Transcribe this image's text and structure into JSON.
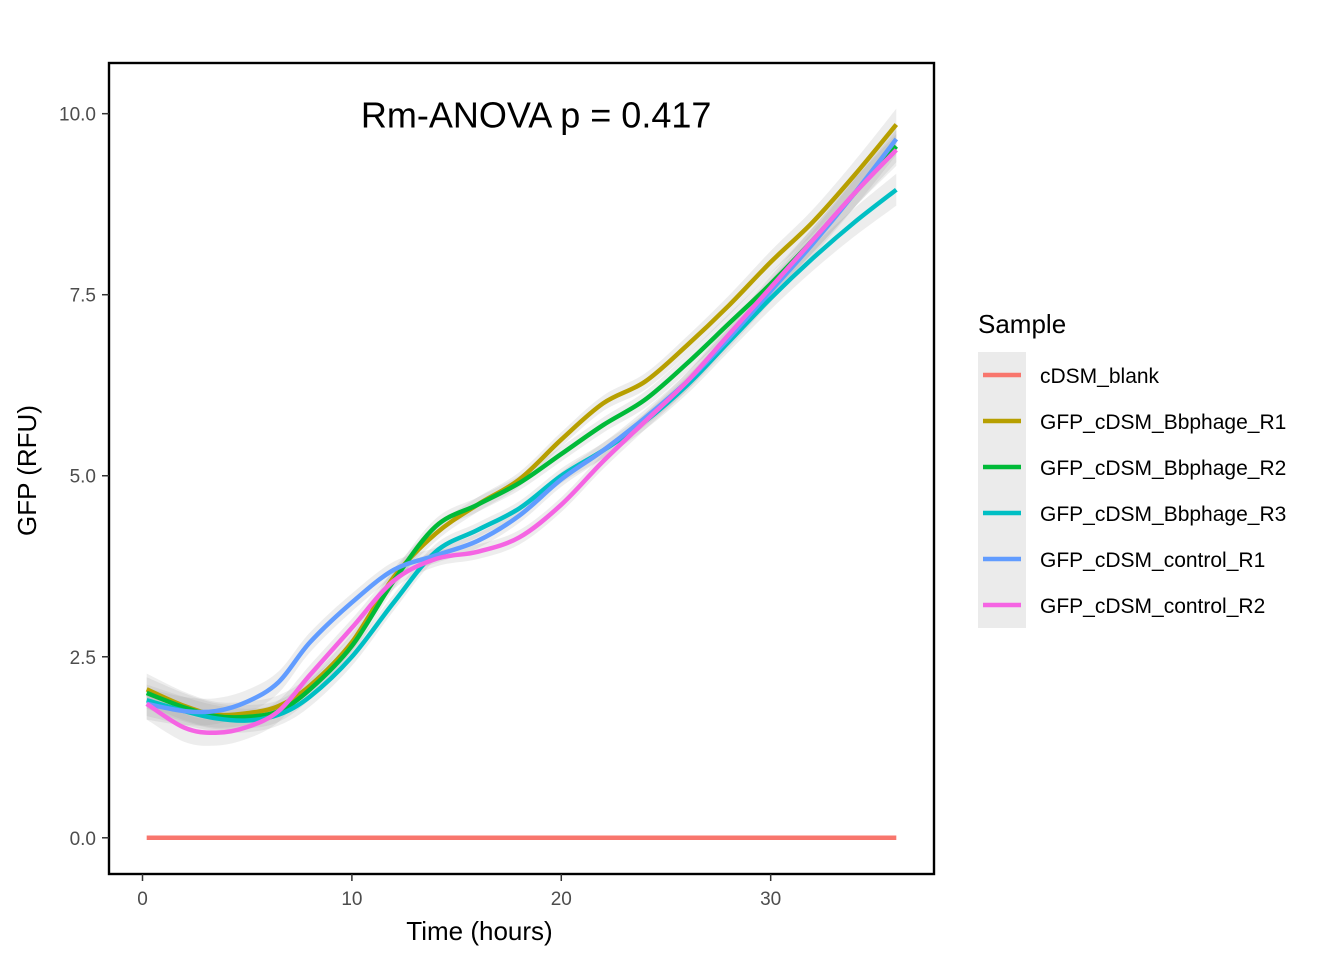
{
  "chart_data": {
    "type": "line",
    "annotation": "Rm-ANOVA p = 0.417",
    "xlabel": "Time (hours)",
    "ylabel": "GFP (RFU)",
    "xlim": [
      -1.6,
      37.8
    ],
    "ylim": [
      -0.5,
      10.7
    ],
    "xticks": [
      0,
      10,
      20,
      30
    ],
    "xtick_labels": [
      "0",
      "10",
      "20",
      "30"
    ],
    "yticks": [
      0,
      2.5,
      5,
      7.5,
      10
    ],
    "ytick_labels": [
      "0.0",
      "2.5",
      "5.0",
      "7.5",
      "10.0"
    ],
    "legend": {
      "title": "Sample",
      "position": "right"
    },
    "confidence_band": true,
    "series": [
      {
        "name": "cDSM_blank",
        "color": "#F8766D",
        "x": [
          0.2,
          36
        ],
        "y": [
          0,
          0
        ]
      },
      {
        "name": "GFP_cDSM_Bbphage_R1",
        "color": "#B79F00",
        "x": [
          0.2,
          2,
          3.5,
          5,
          6.5,
          8,
          10,
          12,
          14,
          16,
          18,
          20,
          22,
          24,
          26,
          28,
          30,
          32,
          34,
          36
        ],
        "y": [
          2.05,
          1.82,
          1.7,
          1.72,
          1.82,
          2.1,
          2.7,
          3.6,
          4.2,
          4.6,
          4.95,
          5.5,
          6.0,
          6.3,
          6.8,
          7.35,
          7.95,
          8.5,
          9.15,
          9.85
        ]
      },
      {
        "name": "GFP_cDSM_Bbphage_R2",
        "color": "#00BA38",
        "x": [
          0.2,
          2,
          3.5,
          5,
          6.5,
          8,
          10,
          12,
          14,
          16,
          18,
          20,
          22,
          24,
          26,
          28,
          30,
          32,
          34,
          36
        ],
        "y": [
          2.0,
          1.8,
          1.68,
          1.67,
          1.75,
          2.05,
          2.65,
          3.55,
          4.3,
          4.6,
          4.9,
          5.3,
          5.7,
          6.05,
          6.55,
          7.1,
          7.65,
          8.25,
          8.9,
          9.55
        ]
      },
      {
        "name": "GFP_cDSM_Bbphage_R3",
        "color": "#00BFC4",
        "x": [
          0.2,
          2,
          3.5,
          5,
          6.5,
          8,
          10,
          12,
          14,
          16,
          18,
          20,
          22,
          24,
          26,
          28,
          30,
          32,
          34,
          36
        ],
        "y": [
          1.9,
          1.75,
          1.65,
          1.62,
          1.7,
          1.95,
          2.5,
          3.25,
          3.95,
          4.25,
          4.55,
          5.0,
          5.35,
          5.75,
          6.25,
          6.85,
          7.45,
          8.0,
          8.5,
          8.95
        ]
      },
      {
        "name": "GFP_cDSM_control_R1",
        "color": "#619CFF",
        "x": [
          0.2,
          2,
          3.5,
          5,
          6.5,
          8,
          10,
          12,
          14,
          16,
          18,
          20,
          22,
          24,
          26,
          28,
          30,
          32,
          34,
          36
        ],
        "y": [
          1.85,
          1.75,
          1.75,
          1.88,
          2.15,
          2.7,
          3.25,
          3.7,
          3.9,
          4.1,
          4.45,
          4.95,
          5.35,
          5.8,
          6.3,
          6.9,
          7.55,
          8.2,
          8.9,
          9.65
        ]
      },
      {
        "name": "GFP_cDSM_control_R2",
        "color": "#F564E3",
        "x": [
          0.2,
          2,
          3.5,
          5,
          6.5,
          8,
          10,
          12,
          14,
          16,
          18,
          20,
          22,
          24,
          26,
          28,
          30,
          32,
          34,
          36
        ],
        "y": [
          1.85,
          1.52,
          1.45,
          1.53,
          1.75,
          2.25,
          2.9,
          3.55,
          3.85,
          3.95,
          4.15,
          4.6,
          5.2,
          5.75,
          6.3,
          6.95,
          7.6,
          8.25,
          8.9,
          9.5
        ]
      }
    ]
  }
}
